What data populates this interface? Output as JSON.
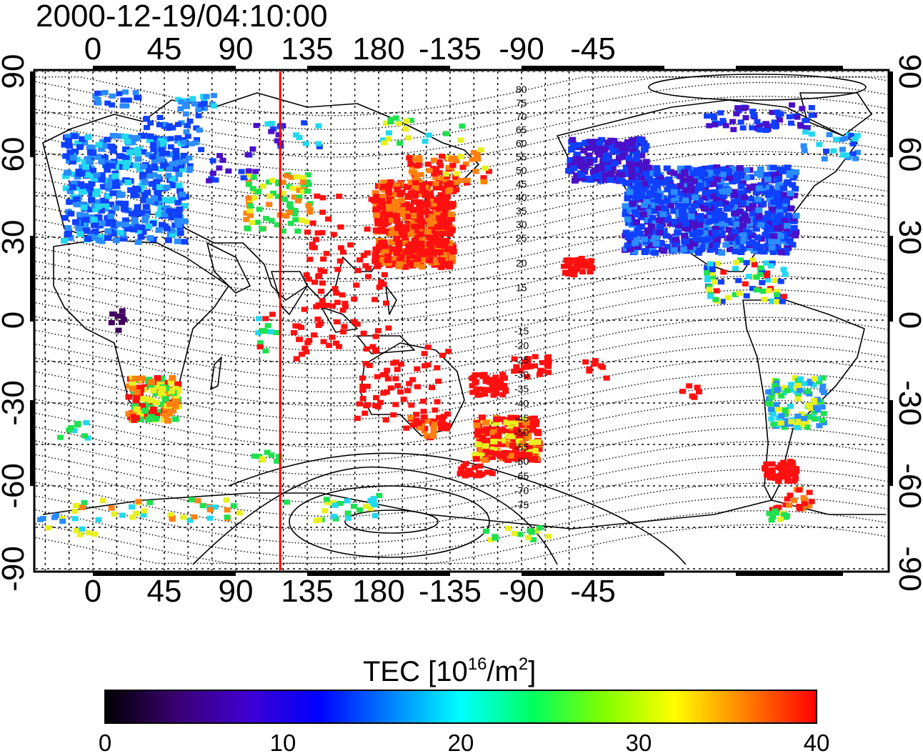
{
  "title": "2000-12-19/04:10:00",
  "map": {
    "top_lon_labels": [
      "0",
      "45",
      "90",
      "135",
      "180",
      "-135",
      "-90",
      "-45"
    ],
    "bottom_lon_labels": [
      "0",
      "45",
      "90",
      "135",
      "180",
      "-135",
      "-90",
      "-45"
    ],
    "left_lat_labels": [
      "90",
      "60",
      "30",
      "0",
      "-30",
      "-60",
      "-90"
    ],
    "right_lat_labels": [
      "90",
      "60",
      "30",
      "0",
      "-30",
      "-60",
      "-90"
    ],
    "contour_labels_north": [
      "80",
      "75",
      "70",
      "65",
      "60",
      "55",
      "50",
      "45",
      "40",
      "35",
      "30",
      "25",
      "20",
      "15"
    ],
    "contour_labels_south": [
      "-15",
      "-20",
      "-25",
      "-30",
      "-35",
      "-40",
      "-45",
      "-50",
      "-55",
      "-60",
      "-65",
      "-70",
      "-75"
    ],
    "grid": true,
    "marker_longitude": 118,
    "marker_color": "#ff0000",
    "tec_colors": {
      "dark_purple": "#400060",
      "purple": "#4a10c8",
      "blue": "#1040ff",
      "sky": "#2a8cff",
      "cyan": "#22d8f0",
      "green": "#20e050",
      "yellow": "#e8f020",
      "orange": "#ff8010",
      "red": "#ff1010"
    }
  },
  "colorbar": {
    "title_prefix": "TEC  [10",
    "title_exp": "16",
    "title_mid": "/m",
    "title_exp2": "2",
    "title_suffix": "]",
    "min": 0,
    "max": 40,
    "tick_labels": [
      "0",
      "10",
      "20",
      "30",
      "40"
    ],
    "stops": [
      "#000000",
      "#3a0070",
      "#4000d0",
      "#0000ff",
      "#0080ff",
      "#00ffff",
      "#00ff60",
      "#80ff00",
      "#ffff00",
      "#ff8000",
      "#ff0000"
    ]
  }
}
